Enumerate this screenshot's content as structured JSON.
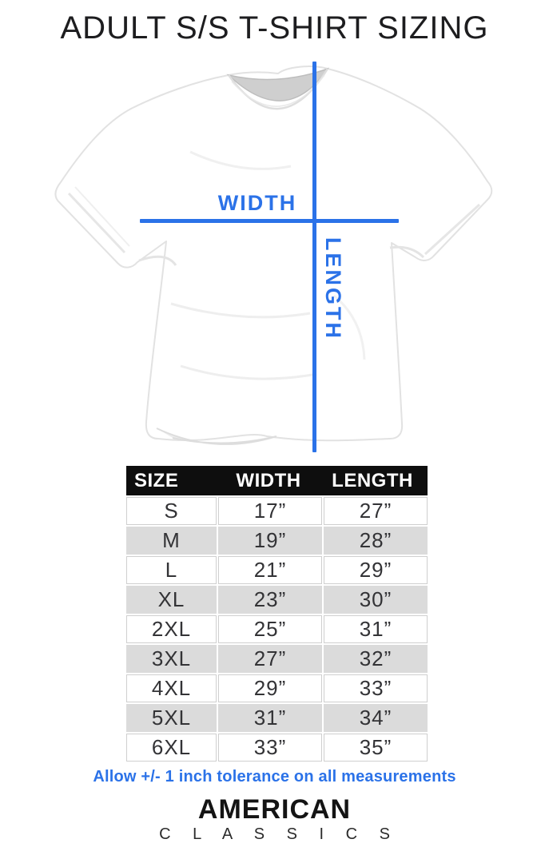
{
  "page": {
    "title": "ADULT S/S T-SHIRT SIZING",
    "background_color": "#ffffff"
  },
  "diagram": {
    "width_label": "WIDTH",
    "length_label": "LENGTH",
    "line_color": "#2b72e8",
    "shirt_color": "#ffffff",
    "shirt_outline_color": "#e2e2e2"
  },
  "table": {
    "columns": [
      "SIZE",
      "WIDTH",
      "LENGTH"
    ],
    "rows": [
      [
        "S",
        "17”",
        "27”"
      ],
      [
        "M",
        "19”",
        "28”"
      ],
      [
        "L",
        "21”",
        "29”"
      ],
      [
        "XL",
        "23”",
        "30”"
      ],
      [
        "2XL",
        "25”",
        "31”"
      ],
      [
        "3XL",
        "27”",
        "32”"
      ],
      [
        "4XL",
        "29”",
        "33”"
      ],
      [
        "5XL",
        "31”",
        "34”"
      ],
      [
        "6XL",
        "33”",
        "35”"
      ]
    ],
    "header_bg": "#0e0e0e",
    "header_text_color": "#ffffff",
    "alt_row_bg": "#dbdbdb",
    "border_color": "#cfcfcf"
  },
  "footer": {
    "tolerance_note": "Allow +/- 1 inch tolerance on all measurements",
    "note_color": "#2b72e8"
  },
  "brand": {
    "line1": "AMERICAN",
    "line2": "C L A S S I C S"
  }
}
